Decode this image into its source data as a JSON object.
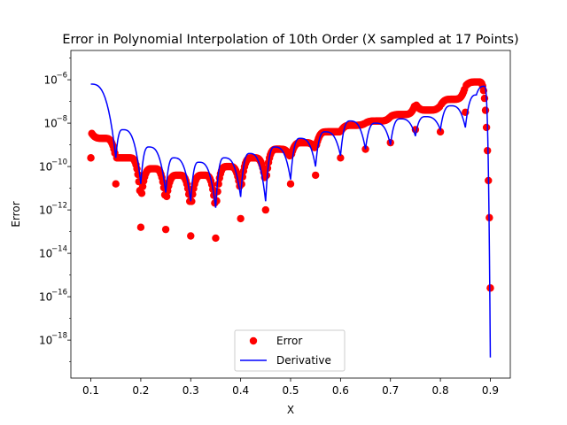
{
  "chart_data": {
    "type": "scatter",
    "title": "Error in Polynomial Interpolation of 10th Order (X sampled at 17 Points)",
    "xlabel": "X",
    "ylabel": "Error",
    "y_scale": "log",
    "xlim": [
      0.06,
      0.94
    ],
    "ylim_log10": [
      -19.75,
      -4.65
    ],
    "x_ticks": [
      0.1,
      0.2,
      0.3,
      0.4,
      0.5,
      0.6,
      0.7,
      0.8,
      0.9
    ],
    "x_tick_labels": [
      "0.1",
      "0.2",
      "0.3",
      "0.4",
      "0.5",
      "0.6",
      "0.7",
      "0.8",
      "0.9"
    ],
    "y_ticks_log10": [
      -18,
      -16,
      -14,
      -12,
      -10,
      -8,
      -6
    ],
    "y_tick_base": "10",
    "y_tick_exponents": [
      "−18",
      "−16",
      "−14",
      "−12",
      "−10",
      "−8",
      "−6"
    ],
    "grid": false,
    "legend_position": "lower center",
    "nodes": [
      0.1,
      0.15,
      0.2,
      0.25,
      0.3,
      0.35,
      0.4,
      0.45,
      0.5,
      0.55,
      0.6,
      0.65,
      0.7,
      0.75,
      0.8,
      0.85,
      0.9
    ],
    "series": [
      {
        "name": "Error",
        "style": "markers",
        "color": "#ff0000",
        "marker": "circle",
        "node_dip_log10": [
          -9.6,
          -10.8,
          -12.8,
          -12.9,
          -13.2,
          -13.3,
          -12.4,
          -12.0,
          -10.8,
          -10.4,
          -9.6,
          -9.2,
          -8.9,
          -8.3,
          -8.4,
          -7.5,
          -15.6
        ],
        "lobe_peaks": [
          {
            "x": 0.12,
            "log10": -8.7
          },
          {
            "x": 0.172,
            "log10": -9.6
          },
          {
            "x": 0.224,
            "log10": -10.1
          },
          {
            "x": 0.274,
            "log10": -10.4
          },
          {
            "x": 0.325,
            "log10": -10.4
          },
          {
            "x": 0.375,
            "log10": -10.0
          },
          {
            "x": 0.425,
            "log10": -9.6
          },
          {
            "x": 0.475,
            "log10": -9.2
          },
          {
            "x": 0.525,
            "log10": -8.9
          },
          {
            "x": 0.575,
            "log10": -8.4
          },
          {
            "x": 0.625,
            "log10": -8.1
          },
          {
            "x": 0.675,
            "log10": -7.9
          },
          {
            "x": 0.725,
            "log10": -7.6
          },
          {
            "x": 0.775,
            "log10": -7.4
          },
          {
            "x": 0.825,
            "log10": -6.9
          },
          {
            "x": 0.875,
            "log10": -6.1
          }
        ],
        "end_points": [
          {
            "x": 0.1,
            "log10": -9.6
          },
          {
            "x": 0.9,
            "log10": -15.6
          }
        ]
      },
      {
        "name": "Derivative",
        "style": "line",
        "color": "#0000ff",
        "points": [
          {
            "x": 0.1,
            "log10": -6.2
          },
          {
            "x": 0.15,
            "log10": -9.6
          },
          {
            "x": 0.164,
            "log10": -8.3
          },
          {
            "x": 0.2,
            "log10": -10.8
          },
          {
            "x": 0.216,
            "log10": -9.1
          },
          {
            "x": 0.25,
            "log10": -11.2
          },
          {
            "x": 0.266,
            "log10": -9.6
          },
          {
            "x": 0.3,
            "log10": -11.6
          },
          {
            "x": 0.316,
            "log10": -9.8
          },
          {
            "x": 0.35,
            "log10": -11.9
          },
          {
            "x": 0.367,
            "log10": -9.6
          },
          {
            "x": 0.4,
            "log10": -11.4
          },
          {
            "x": 0.418,
            "log10": -9.4
          },
          {
            "x": 0.45,
            "log10": -11.6
          },
          {
            "x": 0.468,
            "log10": -9.1
          },
          {
            "x": 0.5,
            "log10": -10.6
          },
          {
            "x": 0.519,
            "log10": -8.7
          },
          {
            "x": 0.55,
            "log10": -10.0
          },
          {
            "x": 0.569,
            "log10": -8.4
          },
          {
            "x": 0.6,
            "log10": -9.5
          },
          {
            "x": 0.619,
            "log10": -7.9
          },
          {
            "x": 0.65,
            "log10": -9.2
          },
          {
            "x": 0.67,
            "log10": -8.0
          },
          {
            "x": 0.7,
            "log10": -9.0
          },
          {
            "x": 0.72,
            "log10": -7.8
          },
          {
            "x": 0.75,
            "log10": -8.6
          },
          {
            "x": 0.77,
            "log10": -7.7
          },
          {
            "x": 0.8,
            "log10": -8.3
          },
          {
            "x": 0.821,
            "log10": -7.2
          },
          {
            "x": 0.85,
            "log10": -8.2
          },
          {
            "x": 0.872,
            "log10": -6.7
          },
          {
            "x": 0.888,
            "log10": -6.3
          },
          {
            "x": 0.9,
            "log10": -18.8
          }
        ]
      }
    ]
  }
}
